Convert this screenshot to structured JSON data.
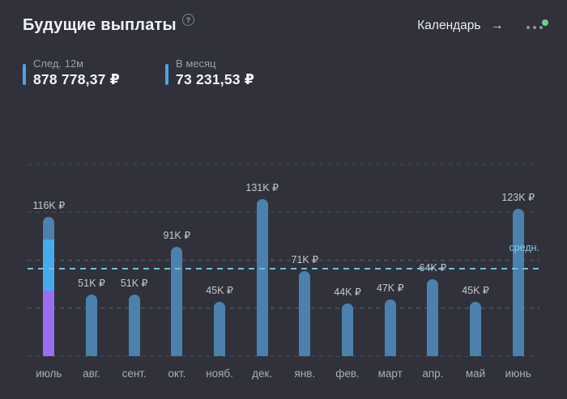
{
  "colors": {
    "background": "#30313b",
    "accent_blue": "#4da3e8",
    "bar_blue": "#4c81ad",
    "segment_light_blue": "#47abeb",
    "segment_purple": "#9b6ef0",
    "average_line": "#6fc2dc",
    "average_label": "#85c8e4",
    "green_badge": "#6ece92"
  },
  "header": {
    "title": "Будущие выплаты",
    "help_glyph": "?",
    "calendar_label": "Календарь",
    "arrow_glyph": "→"
  },
  "stats": [
    {
      "label": "След. 12м",
      "value": "878 778,37 ₽"
    },
    {
      "label": "В месяц",
      "value": "73 231,53 ₽"
    }
  ],
  "chart_data": {
    "type": "bar",
    "title": "Будущие выплаты",
    "categories": [
      "июль",
      "авг.",
      "сент.",
      "окт.",
      "нояб.",
      "дек.",
      "янв.",
      "фев.",
      "март",
      "апр.",
      "май",
      "июнь"
    ],
    "values": [
      116000,
      51000,
      51000,
      91000,
      45000,
      131000,
      71000,
      44000,
      47000,
      64000,
      45000,
      123000
    ],
    "value_labels": [
      "116K ₽",
      "51K ₽",
      "51K ₽",
      "91K ₽",
      "45K ₽",
      "131K ₽",
      "71K ₽",
      "44K ₽",
      "47K ₽",
      "64K ₽",
      "45K ₽",
      "123K ₽"
    ],
    "bar_color": "#4c81ad",
    "stacked_bar": {
      "category": "июль",
      "index": 0,
      "segments_bottom_up": [
        {
          "name": "purple",
          "value": 55000,
          "color": "#9b6ef0"
        },
        {
          "name": "light-blue",
          "value": 42000,
          "color": "#47abeb"
        },
        {
          "name": "steel-blue",
          "value": 19000,
          "color": "#4c81ad"
        }
      ]
    },
    "average_line": {
      "value": 73231.53,
      "label": "средн."
    },
    "ylim": [
      0,
      160000
    ],
    "gridlines": [
      0,
      40000,
      80000,
      120000,
      160000
    ],
    "grid_style": "horizontal-dashed",
    "legend": "none",
    "xlabel": "",
    "ylabel": ""
  }
}
